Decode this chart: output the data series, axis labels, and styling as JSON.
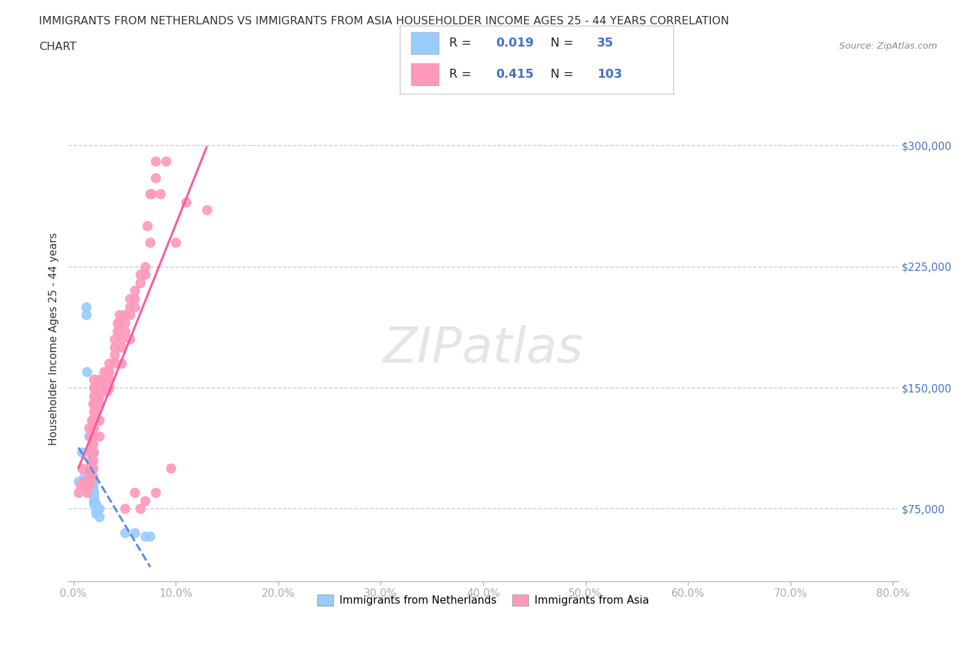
{
  "title_line1": "IMMIGRANTS FROM NETHERLANDS VS IMMIGRANTS FROM ASIA HOUSEHOLDER INCOME AGES 25 - 44 YEARS CORRELATION",
  "title_line2": "CHART",
  "source_text": "Source: ZipAtlas.com",
  "ylabel": "Householder Income Ages 25 - 44 years",
  "xlim": [
    -0.005,
    0.805
  ],
  "ylim": [
    30000,
    330000
  ],
  "yticks": [
    75000,
    150000,
    225000,
    300000
  ],
  "ytick_labels": [
    "$75,000",
    "$150,000",
    "$225,000",
    "$300,000"
  ],
  "xticks": [
    0.0,
    0.1,
    0.2,
    0.3,
    0.4,
    0.5,
    0.6,
    0.7,
    0.8
  ],
  "xtick_labels": [
    "0.0%",
    "10.0%",
    "20.0%",
    "30.0%",
    "40.0%",
    "50.0%",
    "60.0%",
    "70.0%",
    "80.0%"
  ],
  "background_color": "#ffffff",
  "grid_color": "#cccccc",
  "netherlands_color": "#99CCFF",
  "asia_color": "#FF99BB",
  "netherlands_line_color": "#5588EE",
  "asia_line_color": "#FF5599",
  "text_color": "#333333",
  "axis_label_color": "#4472C4",
  "R_netherlands": "0.019",
  "N_netherlands": "35",
  "R_asia": "0.415",
  "N_asia": "103",
  "legend_label_netherlands": "Immigrants from Netherlands",
  "legend_label_asia": "Immigrants from Asia",
  "watermark": "ZIPatlas",
  "netherlands_x": [
    0.005,
    0.008,
    0.01,
    0.012,
    0.012,
    0.013,
    0.015,
    0.015,
    0.016,
    0.016,
    0.017,
    0.018,
    0.018,
    0.018,
    0.019,
    0.019,
    0.019,
    0.019,
    0.019,
    0.019,
    0.02,
    0.02,
    0.02,
    0.02,
    0.02,
    0.021,
    0.022,
    0.022,
    0.022,
    0.025,
    0.025,
    0.05,
    0.06,
    0.07,
    0.075
  ],
  "netherlands_y": [
    92000,
    110000,
    95000,
    200000,
    195000,
    160000,
    120000,
    110000,
    100000,
    100000,
    100000,
    100000,
    95000,
    92000,
    92000,
    90000,
    88000,
    87000,
    87000,
    85000,
    85000,
    83000,
    82000,
    80000,
    78000,
    78000,
    78000,
    75000,
    72000,
    75000,
    70000,
    60000,
    60000,
    58000,
    58000
  ],
  "asia_x": [
    0.005,
    0.007,
    0.008,
    0.01,
    0.01,
    0.012,
    0.013,
    0.013,
    0.015,
    0.015,
    0.016,
    0.016,
    0.016,
    0.016,
    0.017,
    0.017,
    0.017,
    0.017,
    0.018,
    0.018,
    0.018,
    0.018,
    0.018,
    0.018,
    0.019,
    0.019,
    0.019,
    0.019,
    0.019,
    0.019,
    0.019,
    0.019,
    0.019,
    0.02,
    0.02,
    0.02,
    0.02,
    0.02,
    0.02,
    0.02,
    0.02,
    0.021,
    0.022,
    0.022,
    0.022,
    0.025,
    0.025,
    0.025,
    0.025,
    0.025,
    0.025,
    0.03,
    0.03,
    0.032,
    0.033,
    0.033,
    0.033,
    0.035,
    0.035,
    0.035,
    0.035,
    0.04,
    0.04,
    0.04,
    0.04,
    0.043,
    0.043,
    0.045,
    0.045,
    0.047,
    0.047,
    0.047,
    0.05,
    0.05,
    0.05,
    0.05,
    0.055,
    0.055,
    0.055,
    0.055,
    0.06,
    0.06,
    0.06,
    0.06,
    0.065,
    0.065,
    0.065,
    0.07,
    0.07,
    0.07,
    0.072,
    0.075,
    0.075,
    0.076,
    0.08,
    0.08,
    0.08,
    0.085,
    0.09,
    0.095,
    0.1,
    0.11,
    0.13
  ],
  "asia_y": [
    85000,
    90000,
    100000,
    92000,
    90000,
    87000,
    87000,
    85000,
    125000,
    100000,
    100000,
    97000,
    95000,
    90000,
    120000,
    110000,
    105000,
    95000,
    130000,
    120000,
    115000,
    110000,
    105000,
    95000,
    140000,
    130000,
    125000,
    120000,
    115000,
    110000,
    105000,
    100000,
    95000,
    155000,
    150000,
    145000,
    140000,
    135000,
    125000,
    120000,
    110000,
    150000,
    150000,
    145000,
    135000,
    155000,
    150000,
    145000,
    140000,
    130000,
    120000,
    160000,
    155000,
    150000,
    160000,
    155000,
    148000,
    165000,
    160000,
    155000,
    150000,
    180000,
    175000,
    170000,
    165000,
    190000,
    185000,
    195000,
    190000,
    180000,
    175000,
    165000,
    195000,
    190000,
    185000,
    75000,
    205000,
    200000,
    195000,
    180000,
    210000,
    205000,
    200000,
    85000,
    220000,
    215000,
    75000,
    225000,
    220000,
    80000,
    250000,
    240000,
    270000,
    270000,
    280000,
    85000,
    290000,
    270000,
    290000,
    100000,
    240000,
    265000,
    260000
  ]
}
